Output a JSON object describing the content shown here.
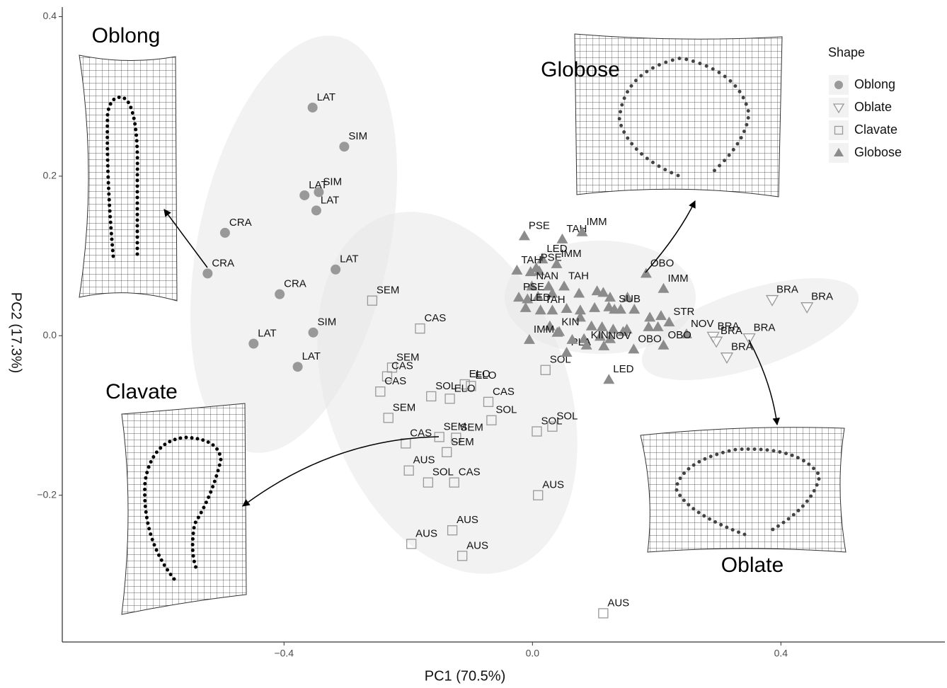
{
  "chart_data": {
    "type": "scatter",
    "x_label": "PC1 (70.5%)",
    "y_label": "PC2 (17.3%)",
    "xlim": [
      -0.757,
      0.664
    ],
    "ylim": [
      -0.384,
      0.412
    ],
    "xticks": [
      {
        "value": -0.4,
        "label": "−0.4"
      },
      {
        "value": 0,
        "label": "0.0"
      },
      {
        "value": 0.4,
        "label": "0.4"
      }
    ],
    "yticks": [
      {
        "value": -0.2,
        "label": "−0.2"
      },
      {
        "value": 0,
        "label": "0.0"
      },
      0.2,
      0.4
    ],
    "legend_title": "Shape",
    "legend_position": "top-right",
    "annotations": [
      "Oblong",
      "Globose",
      "Clavate",
      "Oblate"
    ],
    "series": [
      {
        "name": "Oblong",
        "marker": "circle",
        "color": "#999999",
        "x": [
          -0.354,
          -0.303,
          -0.344,
          -0.367,
          -0.348,
          -0.495,
          -0.523,
          -0.317,
          -0.407,
          -0.353,
          -0.449,
          -0.378
        ],
        "values": [
          0.286,
          0.237,
          0.18,
          0.176,
          0.157,
          0.129,
          0.078,
          0.083,
          0.052,
          0.004,
          -0.01,
          -0.039
        ],
        "labels": [
          "LAT",
          "SIM",
          "SIM",
          "LAT",
          "LAT",
          "CRA",
          "CRA",
          "LAT",
          "CRA",
          "SIM",
          "LAT",
          "LAT"
        ]
      },
      {
        "name": "Oblate",
        "marker": "triangle-down",
        "color": "#999999",
        "x": [
          0.386,
          0.442,
          0.291,
          0.296,
          0.349,
          0.313
        ],
        "values": [
          0.045,
          0.036,
          -0.001,
          -0.007,
          -0.003,
          -0.027
        ],
        "labels": [
          "BRA",
          "BRA",
          "BRA",
          "BRA",
          "BRA",
          "BRA"
        ]
      },
      {
        "name": "Clavate",
        "marker": "square",
        "color": "#999999",
        "x": [
          -0.258,
          -0.181,
          -0.226,
          -0.234,
          -0.245,
          -0.163,
          -0.109,
          -0.099,
          -0.133,
          -0.071,
          -0.066,
          -0.232,
          0.021,
          -0.15,
          -0.123,
          -0.204,
          -0.138,
          0.007,
          0.032,
          -0.199,
          -0.168,
          -0.126,
          0.009,
          -0.129,
          -0.195,
          -0.113,
          0.114
        ],
        "values": [
          0.044,
          0.009,
          -0.04,
          -0.051,
          -0.07,
          -0.076,
          -0.061,
          -0.063,
          -0.079,
          -0.083,
          -0.106,
          -0.103,
          -0.043,
          -0.127,
          -0.128,
          -0.135,
          -0.146,
          -0.12,
          -0.114,
          -0.169,
          -0.184,
          -0.184,
          -0.2,
          -0.244,
          -0.261,
          -0.276,
          -0.348
        ],
        "labels": [
          "SEM",
          "CAS",
          "SEM",
          "CAS",
          "CAS",
          "SOL",
          "ELO",
          "ELO",
          "ELO",
          "CAS",
          "SOL",
          "SEM",
          "SOL",
          "SEM",
          "SEM",
          "CAS",
          "SEM",
          "SOL",
          "SOL",
          "AUS",
          "SOL",
          "CAS",
          "AUS",
          "AUS",
          "AUS",
          "AUS",
          "AUS"
        ]
      },
      {
        "name": "Globose",
        "marker": "triangle-up",
        "color": "#8c8c8c",
        "x": [
          -0.013,
          0.048,
          0.08,
          0.016,
          0.006,
          0.039,
          -0.025,
          -0.003,
          0.011,
          -0.001,
          0.026,
          0.051,
          -0.022,
          -0.008,
          0.009,
          0.032,
          0.075,
          0.104,
          0.114,
          0.125,
          0.153,
          0.183,
          0.211,
          -0.011,
          0.013,
          0.032,
          0.055,
          0.077,
          0.1,
          0.123,
          0.142,
          0.164,
          0.189,
          0.207,
          0.22,
          0.248,
          0.202,
          0.187,
          0.152,
          0.13,
          0.112,
          0.095,
          0.077,
          0.028,
          0.043,
          -0.005,
          0.04,
          0.083,
          0.109,
          0.125,
          0.146,
          0.163,
          0.211,
          0.055,
          0.087,
          0.115,
          0.123,
          0.064,
          0.132
        ],
        "values": [
          0.125,
          0.121,
          0.13,
          0.096,
          0.085,
          0.09,
          0.082,
          0.08,
          0.081,
          0.062,
          0.062,
          0.062,
          0.048,
          0.046,
          0.049,
          0.053,
          0.053,
          0.056,
          0.054,
          0.048,
          0.048,
          0.078,
          0.059,
          0.035,
          0.032,
          0.032,
          0.034,
          0.032,
          0.035,
          0.036,
          0.033,
          0.033,
          0.023,
          0.025,
          0.017,
          0.002,
          0.011,
          0.011,
          0.008,
          0.008,
          0.011,
          0.012,
          0.023,
          0.012,
          0.005,
          -0.005,
          0.004,
          -0.004,
          -0.001,
          -0.004,
          0.005,
          -0.017,
          -0.012,
          -0.021,
          -0.012,
          -0.013,
          -0.055,
          -0.005,
          0.033
        ],
        "labels": [
          "PSE",
          "TAH",
          "IMM",
          "LED",
          "PSE",
          "IMM",
          "TAH",
          null,
          null,
          "NAN",
          null,
          "TAH",
          "PSE",
          null,
          null,
          null,
          null,
          null,
          null,
          null,
          null,
          "OBO",
          "IMM",
          "LED",
          "TAH",
          null,
          null,
          null,
          null,
          null,
          null,
          null,
          null,
          null,
          "STR",
          "NOV",
          null,
          null,
          null,
          null,
          null,
          null,
          null,
          null,
          null,
          "IMM",
          "KIN",
          null,
          null,
          null,
          null,
          "OBO",
          "OBO",
          "PLA",
          "KIN",
          "NOV",
          "LED",
          null,
          "SUB"
        ]
      }
    ]
  }
}
